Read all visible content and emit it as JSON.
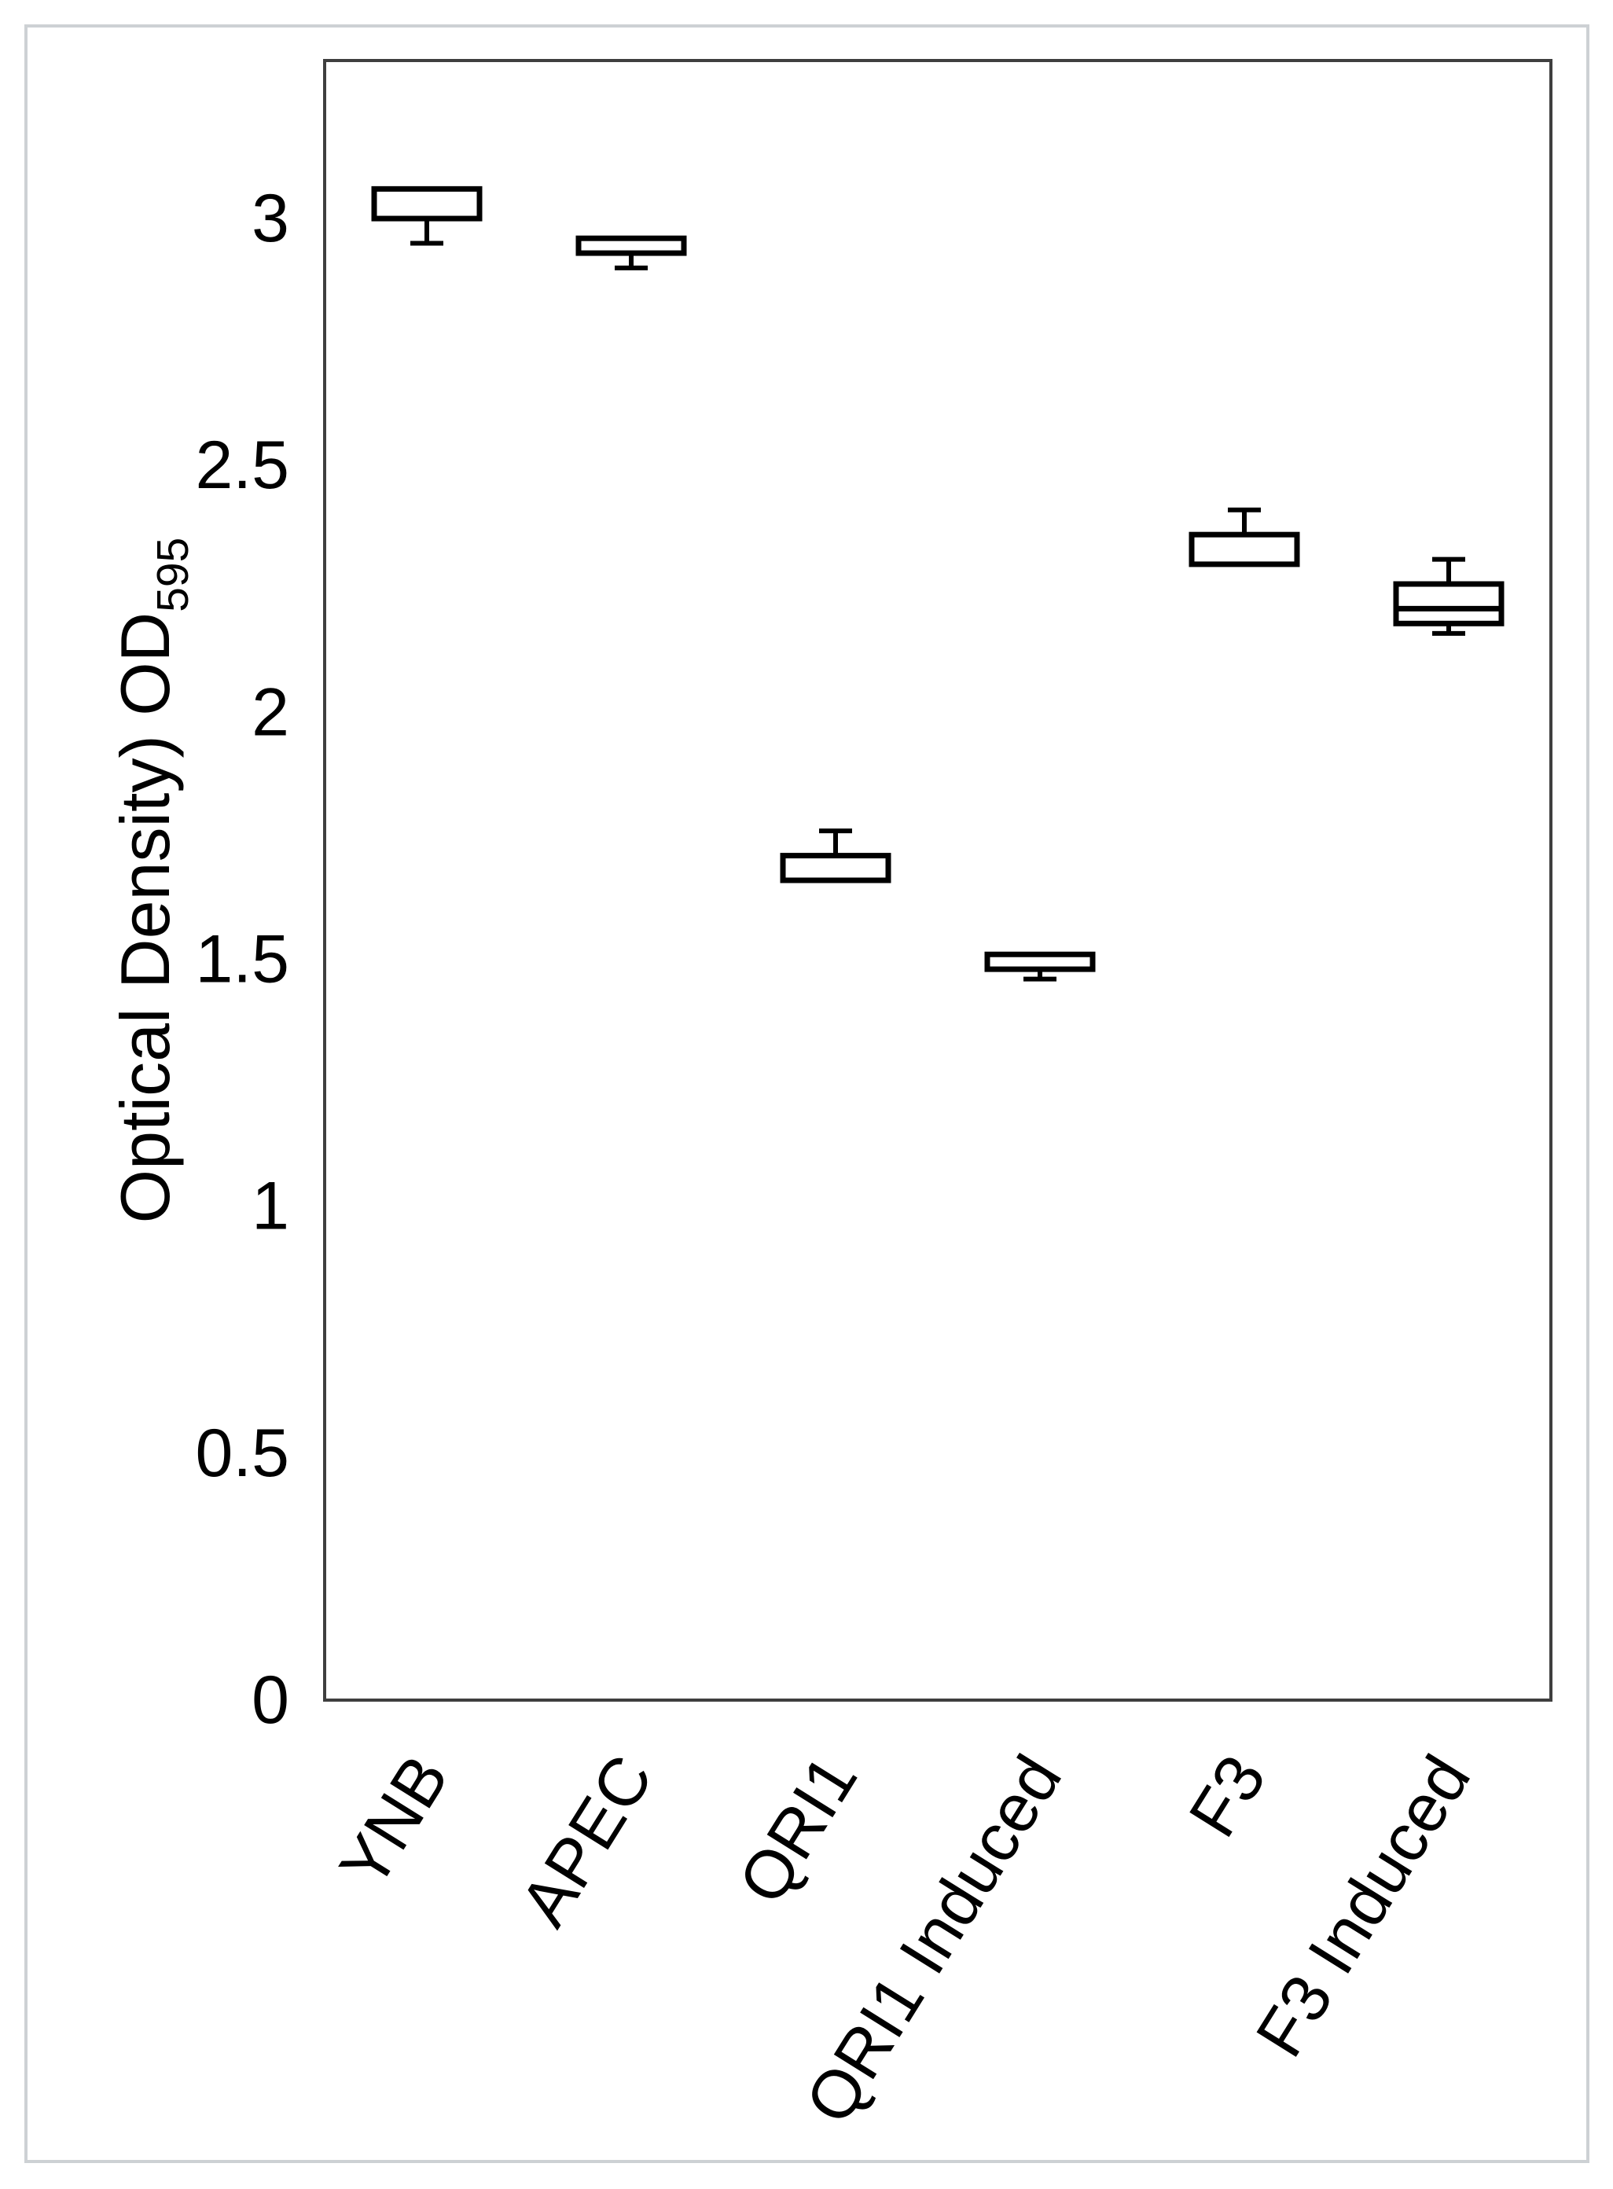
{
  "figure": {
    "background_color": "#ffffff",
    "outer_border_color": "#cdd1d4",
    "axis_frame_color": "#3f3f3f",
    "box_stroke_color": "#000000",
    "box_fill_color": "#ffffff",
    "text_color": "#000000"
  },
  "chart_data": {
    "type": "box",
    "title": "",
    "ylabel": "Optical Density) OD",
    "ylabel_subscript": "595",
    "xlabel": "",
    "categories": [
      "YNB",
      "APEC",
      "QRI1",
      "QRI1 Induced",
      "F3",
      "F3 Induced"
    ],
    "y_ticks": [
      0,
      0.5,
      1,
      1.5,
      2,
      2.5,
      3
    ],
    "y_tick_labels": [
      "0",
      "0.5",
      "1",
      "1.5",
      "2",
      "2.5",
      "3"
    ],
    "ylim": [
      0,
      3.32
    ],
    "grid": false,
    "legend": "none",
    "x_label_rotation_deg": -58,
    "boxes": [
      {
        "category": "YNB",
        "q1": 3.0,
        "median": null,
        "q3": 3.06,
        "whisker_low": 2.95,
        "whisker_high": null
      },
      {
        "category": "APEC",
        "q1": 2.93,
        "median": null,
        "q3": 2.96,
        "whisker_low": 2.9,
        "whisker_high": null
      },
      {
        "category": "QRI1",
        "q1": 1.66,
        "median": null,
        "q3": 1.71,
        "whisker_low": null,
        "whisker_high": 1.76
      },
      {
        "category": "QRI1 Induced",
        "q1": 1.48,
        "median": null,
        "q3": 1.51,
        "whisker_low": 1.46,
        "whisker_high": null
      },
      {
        "category": "F3",
        "q1": 2.3,
        "median": null,
        "q3": 2.36,
        "whisker_low": null,
        "whisker_high": 2.41
      },
      {
        "category": "F3 Induced",
        "q1": 2.18,
        "median": 2.21,
        "q3": 2.26,
        "whisker_low": 2.16,
        "whisker_high": 2.31
      }
    ]
  }
}
